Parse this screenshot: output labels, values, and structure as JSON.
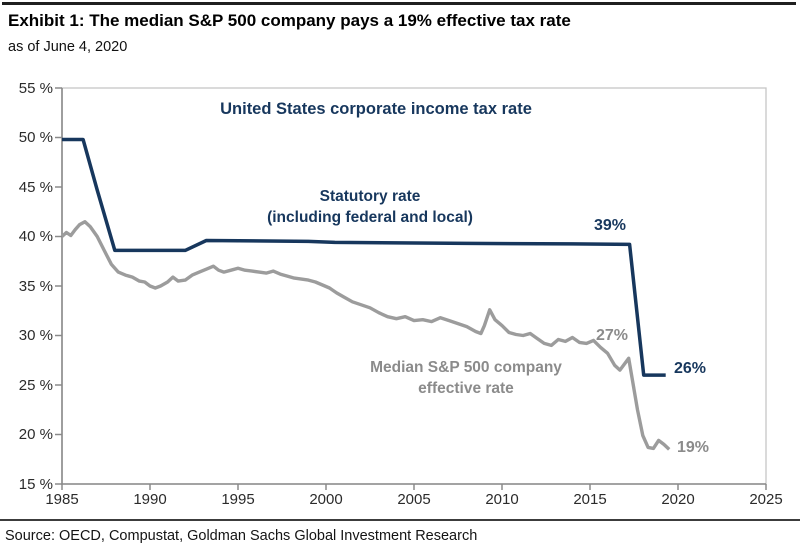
{
  "header": {
    "title": "Exhibit 1: The median S&P 500 company pays a 19% effective tax rate",
    "as_of": "as of June 4, 2020"
  },
  "chart_data": {
    "type": "line",
    "title": "United States corporate income tax rate",
    "xlabel": "",
    "ylabel": "",
    "xlim": [
      1985,
      2025
    ],
    "ylim": [
      15,
      55
    ],
    "grid": false,
    "legend_position": "inline-labels",
    "x_ticks": [
      {
        "label": "1985",
        "value": 1985
      },
      {
        "label": "1990",
        "value": 1990
      },
      {
        "label": "1995",
        "value": 1995
      },
      {
        "label": "2000",
        "value": 2000
      },
      {
        "label": "2005",
        "value": 2005
      },
      {
        "label": "2010",
        "value": 2010
      },
      {
        "label": "2015",
        "value": 2015
      },
      {
        "label": "2020",
        "value": 2020
      },
      {
        "label": "2025",
        "value": 2025
      }
    ],
    "y_ticks": [
      {
        "label": "55 %",
        "value": 55
      },
      {
        "label": "50 %",
        "value": 50
      },
      {
        "label": "45 %",
        "value": 45
      },
      {
        "label": "40 %",
        "value": 40
      },
      {
        "label": "35 %",
        "value": 35
      },
      {
        "label": "30 %",
        "value": 30
      },
      {
        "label": "25 %",
        "value": 25
      },
      {
        "label": "20 %",
        "value": 20
      },
      {
        "label": "15 %",
        "value": 15
      }
    ],
    "series": [
      {
        "name": "Statutory rate (including federal and local)",
        "color": "#17375d",
        "points": [
          [
            1985.0,
            49.8
          ],
          [
            1986.2,
            49.8
          ],
          [
            1987.0,
            44.7
          ],
          [
            1988.0,
            38.6
          ],
          [
            1992.0,
            38.6
          ],
          [
            1993.2,
            39.6
          ],
          [
            1999.0,
            39.5
          ],
          [
            2000.5,
            39.4
          ],
          [
            2008.0,
            39.3
          ],
          [
            2014.0,
            39.25
          ],
          [
            2017.25,
            39.2
          ],
          [
            2018.05,
            26.0
          ],
          [
            2019.3,
            26.0
          ]
        ]
      },
      {
        "name": "Median S&P 500 company effective rate",
        "color": "#9c9c9c",
        "points": [
          [
            1985.0,
            40.0
          ],
          [
            1985.25,
            40.4
          ],
          [
            1985.5,
            40.1
          ],
          [
            1985.75,
            40.7
          ],
          [
            1986.0,
            41.2
          ],
          [
            1986.3,
            41.5
          ],
          [
            1986.6,
            41.0
          ],
          [
            1987.0,
            40.0
          ],
          [
            1987.4,
            38.6
          ],
          [
            1987.8,
            37.2
          ],
          [
            1988.2,
            36.4
          ],
          [
            1988.6,
            36.1
          ],
          [
            1989.0,
            35.9
          ],
          [
            1989.4,
            35.5
          ],
          [
            1989.7,
            35.4
          ],
          [
            1990.0,
            35.0
          ],
          [
            1990.3,
            34.8
          ],
          [
            1990.6,
            35.0
          ],
          [
            1991.0,
            35.4
          ],
          [
            1991.3,
            35.9
          ],
          [
            1991.6,
            35.5
          ],
          [
            1992.0,
            35.6
          ],
          [
            1992.4,
            36.1
          ],
          [
            1992.8,
            36.4
          ],
          [
            1993.2,
            36.7
          ],
          [
            1993.6,
            37.0
          ],
          [
            1993.9,
            36.6
          ],
          [
            1994.2,
            36.4
          ],
          [
            1994.6,
            36.6
          ],
          [
            1995.0,
            36.8
          ],
          [
            1995.4,
            36.6
          ],
          [
            1995.8,
            36.5
          ],
          [
            1996.2,
            36.4
          ],
          [
            1996.6,
            36.3
          ],
          [
            1997.0,
            36.5
          ],
          [
            1997.4,
            36.2
          ],
          [
            1997.8,
            36.0
          ],
          [
            1998.2,
            35.8
          ],
          [
            1998.6,
            35.7
          ],
          [
            1999.0,
            35.6
          ],
          [
            1999.4,
            35.4
          ],
          [
            1999.8,
            35.1
          ],
          [
            2000.2,
            34.8
          ],
          [
            2000.6,
            34.3
          ],
          [
            2001.0,
            33.9
          ],
          [
            2001.5,
            33.4
          ],
          [
            2002.0,
            33.1
          ],
          [
            2002.5,
            32.8
          ],
          [
            2003.0,
            32.3
          ],
          [
            2003.5,
            31.9
          ],
          [
            2004.0,
            31.7
          ],
          [
            2004.5,
            31.9
          ],
          [
            2005.0,
            31.5
          ],
          [
            2005.5,
            31.6
          ],
          [
            2006.0,
            31.4
          ],
          [
            2006.5,
            31.8
          ],
          [
            2007.0,
            31.5
          ],
          [
            2007.5,
            31.2
          ],
          [
            2008.0,
            30.9
          ],
          [
            2008.5,
            30.4
          ],
          [
            2008.8,
            30.2
          ],
          [
            2009.0,
            31.0
          ],
          [
            2009.3,
            32.6
          ],
          [
            2009.6,
            31.6
          ],
          [
            2010.0,
            31.0
          ],
          [
            2010.4,
            30.3
          ],
          [
            2010.8,
            30.1
          ],
          [
            2011.2,
            30.0
          ],
          [
            2011.6,
            30.2
          ],
          [
            2012.0,
            29.7
          ],
          [
            2012.4,
            29.2
          ],
          [
            2012.8,
            29.0
          ],
          [
            2013.2,
            29.6
          ],
          [
            2013.6,
            29.4
          ],
          [
            2014.0,
            29.8
          ],
          [
            2014.4,
            29.3
          ],
          [
            2014.8,
            29.2
          ],
          [
            2015.2,
            29.5
          ],
          [
            2015.6,
            28.8
          ],
          [
            2016.0,
            28.2
          ],
          [
            2016.4,
            27.0
          ],
          [
            2016.7,
            26.5
          ],
          [
            2017.2,
            27.7
          ],
          [
            2017.7,
            22.5
          ],
          [
            2018.0,
            19.9
          ],
          [
            2018.3,
            18.7
          ],
          [
            2018.6,
            18.6
          ],
          [
            2018.9,
            19.4
          ],
          [
            2019.2,
            19.0
          ],
          [
            2019.5,
            18.5
          ]
        ]
      }
    ],
    "series_labels": {
      "statutory": {
        "line1": "Statutory rate",
        "line2": "(including federal and local)"
      },
      "effective": {
        "line1": "Median S&P 500 company",
        "line2": "effective rate"
      }
    },
    "annotations": {
      "statutory_pre": "39%",
      "statutory_post": "26%",
      "effective_pre": "27%",
      "effective_post": "19%"
    },
    "colors": {
      "navy": "#17375d",
      "line_gray": "#9c9c9c",
      "text_gray": "#8b8b8b"
    }
  },
  "footer": {
    "source": "Source: OECD, Compustat, Goldman Sachs Global Investment Research"
  }
}
